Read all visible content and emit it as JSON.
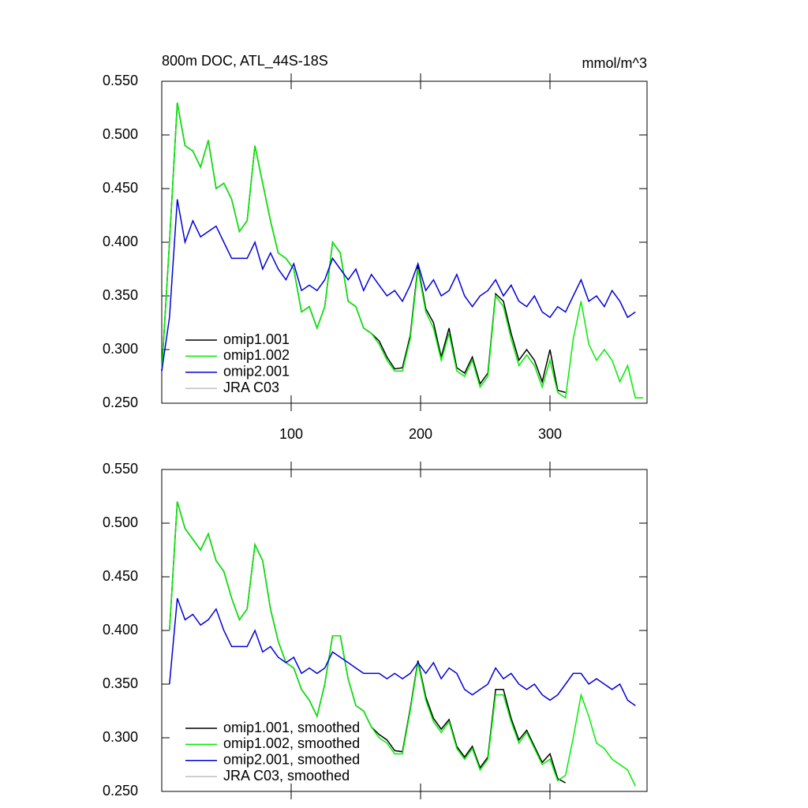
{
  "chart_data": [
    {
      "type": "line",
      "title": "800m DOC, ATL_44S-18S",
      "units": "mmol/m^3",
      "xlim": [
        0,
        375
      ],
      "xticks": [
        100,
        200,
        300
      ],
      "xtick_labels": true,
      "ylim": [
        0.25,
        0.55
      ],
      "yticks": [
        {
          "value": 0.25,
          "label": "0.250"
        },
        {
          "value": 0.3,
          "label": "0.300"
        },
        {
          "value": 0.35,
          "label": "0.350"
        },
        {
          "value": 0.4,
          "label": "0.400"
        },
        {
          "value": 0.45,
          "label": "0.450"
        },
        {
          "value": 0.5,
          "label": "0.500"
        },
        {
          "value": 0.55,
          "label": "0.550"
        }
      ],
      "legend": "lower-left",
      "x": [
        0,
        6,
        12,
        18,
        24,
        30,
        36,
        42,
        48,
        54,
        60,
        66,
        72,
        78,
        84,
        90,
        96,
        102,
        108,
        114,
        120,
        126,
        132,
        138,
        144,
        150,
        156,
        162,
        168,
        174,
        180,
        186,
        192,
        198,
        204,
        210,
        216,
        222,
        228,
        234,
        240,
        246,
        252,
        258,
        264,
        270,
        276,
        282,
        288,
        294,
        300,
        306,
        312,
        318,
        324,
        330,
        336,
        342,
        348,
        354,
        360,
        366,
        372
      ],
      "series": [
        {
          "name": "omip1.001",
          "color": "#000000",
          "values": [
            0.28,
            0.4,
            0.53,
            0.49,
            0.485,
            0.47,
            0.495,
            0.45,
            0.455,
            0.44,
            0.41,
            0.42,
            0.49,
            0.455,
            0.42,
            0.39,
            0.385,
            0.375,
            0.335,
            0.34,
            0.32,
            0.34,
            0.4,
            0.39,
            0.345,
            0.34,
            0.32,
            0.315,
            0.308,
            0.293,
            0.282,
            0.283,
            0.313,
            0.378,
            0.338,
            0.325,
            0.293,
            0.32,
            0.283,
            0.278,
            0.293,
            0.268,
            0.278,
            0.352,
            0.345,
            0.315,
            0.29,
            0.3,
            0.29,
            0.27,
            0.3,
            0.262,
            0.26,
            null,
            null,
            null,
            null,
            null,
            null,
            null,
            null,
            null,
            null
          ]
        },
        {
          "name": "omip1.002",
          "color": "#00ee00",
          "values": [
            0.28,
            0.4,
            0.53,
            0.49,
            0.485,
            0.47,
            0.495,
            0.45,
            0.455,
            0.44,
            0.41,
            0.42,
            0.49,
            0.455,
            0.42,
            0.39,
            0.385,
            0.375,
            0.335,
            0.34,
            0.32,
            0.34,
            0.4,
            0.39,
            0.345,
            0.34,
            0.32,
            0.315,
            0.305,
            0.29,
            0.28,
            0.28,
            0.31,
            0.375,
            0.335,
            0.32,
            0.29,
            0.315,
            0.28,
            0.275,
            0.29,
            0.265,
            0.275,
            0.35,
            0.34,
            0.31,
            0.285,
            0.295,
            0.285,
            0.265,
            0.29,
            0.26,
            0.255,
            0.31,
            0.345,
            0.305,
            0.29,
            0.3,
            0.29,
            0.27,
            0.285,
            0.255,
            0.255
          ]
        },
        {
          "name": "omip2.001",
          "color": "#0000dd",
          "values": [
            0.28,
            0.33,
            0.44,
            0.4,
            0.42,
            0.405,
            0.41,
            0.415,
            0.4,
            0.385,
            0.385,
            0.385,
            0.4,
            0.375,
            0.39,
            0.375,
            0.365,
            0.38,
            0.355,
            0.36,
            0.355,
            0.365,
            0.385,
            0.375,
            0.365,
            0.375,
            0.355,
            0.37,
            0.36,
            0.35,
            0.355,
            0.345,
            0.36,
            0.38,
            0.355,
            0.365,
            0.35,
            0.355,
            0.37,
            0.35,
            0.34,
            0.35,
            0.355,
            0.365,
            0.35,
            0.36,
            0.345,
            0.34,
            0.35,
            0.335,
            0.33,
            0.34,
            0.335,
            0.35,
            0.365,
            0.345,
            0.35,
            0.34,
            0.355,
            0.345,
            0.33,
            0.335,
            null
          ]
        },
        {
          "name": "JRA C03",
          "color": "#c0c0c0",
          "values": [
            null,
            null,
            null,
            null,
            null,
            null,
            null,
            null,
            null,
            null,
            null,
            null,
            null,
            null,
            null,
            null,
            null,
            null,
            null,
            null,
            null,
            null,
            null,
            null,
            null,
            null,
            null,
            null,
            null,
            null,
            null,
            null,
            null,
            null,
            null,
            null,
            null,
            null,
            null,
            null,
            null,
            null,
            null,
            null,
            null,
            null,
            null,
            null,
            null,
            null,
            null,
            null,
            null,
            null,
            null,
            null,
            null,
            null,
            null,
            null,
            null,
            null,
            null
          ]
        }
      ]
    },
    {
      "type": "line",
      "xlim": [
        0,
        375
      ],
      "xticks": [
        100,
        200,
        300
      ],
      "xtick_labels": false,
      "ylim": [
        0.25,
        0.55
      ],
      "yticks": [
        {
          "value": 0.25,
          "label": "0.250"
        },
        {
          "value": 0.3,
          "label": "0.300"
        },
        {
          "value": 0.35,
          "label": "0.350"
        },
        {
          "value": 0.4,
          "label": "0.400"
        },
        {
          "value": 0.45,
          "label": "0.450"
        },
        {
          "value": 0.5,
          "label": "0.500"
        },
        {
          "value": 0.55,
          "label": "0.550"
        }
      ],
      "legend": "lower-left",
      "x": [
        0,
        6,
        12,
        18,
        24,
        30,
        36,
        42,
        48,
        54,
        60,
        66,
        72,
        78,
        84,
        90,
        96,
        102,
        108,
        114,
        120,
        126,
        132,
        138,
        144,
        150,
        156,
        162,
        168,
        174,
        180,
        186,
        192,
        198,
        204,
        210,
        216,
        222,
        228,
        234,
        240,
        246,
        252,
        258,
        264,
        270,
        276,
        282,
        288,
        294,
        300,
        306,
        312,
        318,
        324,
        330,
        336,
        342,
        348,
        354,
        360,
        366,
        372
      ],
      "series": [
        {
          "name": "omip1.001, smoothed",
          "color": "#000000",
          "values": [
            null,
            0.4,
            0.52,
            0.495,
            0.485,
            0.475,
            0.49,
            0.465,
            0.455,
            0.43,
            0.41,
            0.42,
            0.48,
            0.465,
            0.42,
            0.39,
            0.37,
            0.365,
            0.345,
            0.335,
            0.32,
            0.35,
            0.395,
            0.395,
            0.355,
            0.33,
            0.325,
            0.31,
            0.303,
            0.298,
            0.288,
            0.287,
            0.327,
            0.372,
            0.338,
            0.318,
            0.308,
            0.317,
            0.292,
            0.282,
            0.292,
            0.272,
            0.282,
            0.345,
            0.345,
            0.318,
            0.298,
            0.307,
            0.292,
            0.277,
            0.285,
            0.262,
            0.258,
            null,
            null,
            null,
            null,
            null,
            null,
            null,
            null,
            null,
            null
          ]
        },
        {
          "name": "omip1.002, smoothed",
          "color": "#00ee00",
          "values": [
            null,
            0.4,
            0.52,
            0.495,
            0.485,
            0.475,
            0.49,
            0.465,
            0.455,
            0.43,
            0.41,
            0.42,
            0.48,
            0.465,
            0.42,
            0.39,
            0.37,
            0.365,
            0.345,
            0.335,
            0.32,
            0.35,
            0.395,
            0.395,
            0.355,
            0.33,
            0.325,
            0.31,
            0.3,
            0.295,
            0.285,
            0.285,
            0.325,
            0.37,
            0.335,
            0.315,
            0.305,
            0.315,
            0.29,
            0.28,
            0.29,
            0.27,
            0.28,
            0.34,
            0.34,
            0.315,
            0.295,
            0.305,
            0.29,
            0.275,
            0.28,
            0.26,
            0.265,
            0.3,
            0.34,
            0.32,
            0.295,
            0.29,
            0.28,
            0.275,
            0.27,
            0.255,
            null
          ]
        },
        {
          "name": "omip2.001, smoothed",
          "color": "#0000dd",
          "values": [
            null,
            0.35,
            0.43,
            0.41,
            0.415,
            0.405,
            0.41,
            0.42,
            0.4,
            0.385,
            0.385,
            0.385,
            0.4,
            0.38,
            0.385,
            0.375,
            0.37,
            0.375,
            0.36,
            0.365,
            0.36,
            0.365,
            0.38,
            0.375,
            0.37,
            0.365,
            0.36,
            0.36,
            0.36,
            0.355,
            0.36,
            0.355,
            0.36,
            0.37,
            0.36,
            0.37,
            0.355,
            0.365,
            0.36,
            0.345,
            0.34,
            0.345,
            0.35,
            0.365,
            0.355,
            0.36,
            0.35,
            0.345,
            0.35,
            0.34,
            0.335,
            0.34,
            0.35,
            0.36,
            0.36,
            0.35,
            0.355,
            0.35,
            0.345,
            0.35,
            0.335,
            0.33,
            null
          ]
        },
        {
          "name": "JRA C03, smoothed",
          "color": "#c0c0c0",
          "values": [
            null,
            null,
            null,
            null,
            null,
            null,
            null,
            null,
            null,
            null,
            null,
            null,
            null,
            null,
            null,
            null,
            null,
            null,
            null,
            null,
            null,
            null,
            null,
            null,
            null,
            null,
            null,
            null,
            null,
            null,
            null,
            null,
            null,
            null,
            null,
            null,
            null,
            null,
            null,
            null,
            null,
            null,
            null,
            null,
            null,
            null,
            null,
            null,
            null,
            null,
            null,
            null,
            null,
            null,
            null,
            null,
            null,
            null,
            null,
            null,
            null,
            null,
            null
          ]
        }
      ]
    }
  ]
}
